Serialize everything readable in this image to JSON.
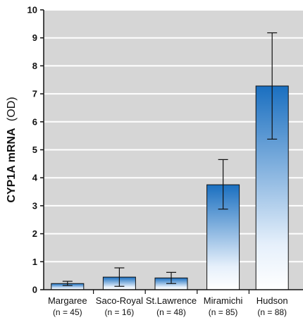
{
  "chart_data": {
    "type": "bar",
    "title": "",
    "xlabel": "",
    "ylabel": "CYP1A mRNA (OD)",
    "ylabel_main": "CYP1A mRNA",
    "ylabel_unit": "(OD)",
    "ylim": [
      0,
      10
    ],
    "yticks": [
      "0",
      "1",
      "2",
      "3",
      "4",
      "5",
      "6",
      "7",
      "8",
      "9",
      "10"
    ],
    "grid": true,
    "grid_style": "horizontal white lines on gray background",
    "categories": [
      "Margaree",
      "Saco-Royal",
      "St.Lawrence",
      "Miramichi",
      "Hudson"
    ],
    "sample_sizes": [
      "(n = 45)",
      "(n = 16)",
      "(n = 48)",
      "(n = 85)",
      "(n = 88)"
    ],
    "values": [
      0.22,
      0.45,
      0.42,
      3.75,
      7.28
    ],
    "error": [
      [
        0.15,
        0.3
      ],
      [
        0.12,
        0.78
      ],
      [
        0.22,
        0.62
      ],
      [
        2.88,
        4.65
      ],
      [
        5.38,
        9.18
      ]
    ],
    "colors": {
      "background": "#d6d6d6",
      "grid": "#ffffff",
      "bar_top": "#1a6fc0",
      "bar_bottom": "#ffffff",
      "axis": "#111111"
    }
  }
}
